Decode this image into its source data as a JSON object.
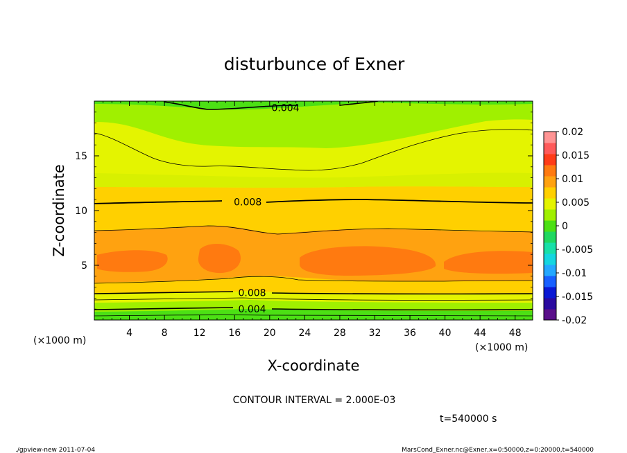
{
  "chart_data": {
    "type": "heatmap",
    "title": "disturbunce of Exner",
    "xlabel": "X-coordinate",
    "ylabel": "Z-coordinate",
    "x_unit": "(×1000 m)",
    "x_unit_right": "(×1000 m)",
    "x_ticks": [
      "4",
      "8",
      "12",
      "16",
      "20",
      "24",
      "28",
      "32",
      "36",
      "40",
      "44",
      "48"
    ],
    "x_tick_values": [
      4,
      8,
      12,
      16,
      20,
      24,
      28,
      32,
      36,
      40,
      44,
      48
    ],
    "y_ticks": [
      "5",
      "10",
      "15"
    ],
    "y_tick_values": [
      5,
      10,
      15
    ],
    "xlim": [
      0,
      50
    ],
    "ylim": [
      0,
      20
    ],
    "contour_interval_text": "CONTOUR INTERVAL = 2.000E-03",
    "time_text": "t=540000 s",
    "contour_labels": [
      {
        "text": "0.004",
        "x": 21.8,
        "z": 19.4
      },
      {
        "text": "0.008",
        "x": 17.5,
        "z": 10.8
      },
      {
        "text": "0.008",
        "x": 18.0,
        "z": 2.5
      },
      {
        "text": "0.004",
        "x": 18.0,
        "z": 1.0
      }
    ],
    "colorbar": {
      "tick_labels": [
        "0.02",
        "0.015",
        "0.01",
        "0.005",
        "0",
        "-0.005",
        "-0.01",
        "-0.015",
        "-0.02"
      ],
      "tick_values": [
        0.02,
        0.015,
        0.01,
        0.005,
        0,
        -0.005,
        -0.01,
        -0.015,
        -0.02
      ],
      "range": [
        -0.02,
        0.02
      ],
      "colors": [
        "#5a0f8a",
        "#2a0aa0",
        "#0a18d4",
        "#1860ff",
        "#24a8ff",
        "#14d6e0",
        "#18e0a8",
        "#20d860",
        "#4ce014",
        "#a0f000",
        "#e4f400",
        "#ffd000",
        "#ffa210",
        "#ff7a10",
        "#ff3c18",
        "#ff5a5a",
        "#ff9494"
      ]
    },
    "field_description_note": ""
  },
  "footer": {
    "left": "./gpview-new   2011-07-04",
    "right": "MarsCond_Exner.nc@Exner,x=0:50000,z=0:20000,t=540000"
  }
}
